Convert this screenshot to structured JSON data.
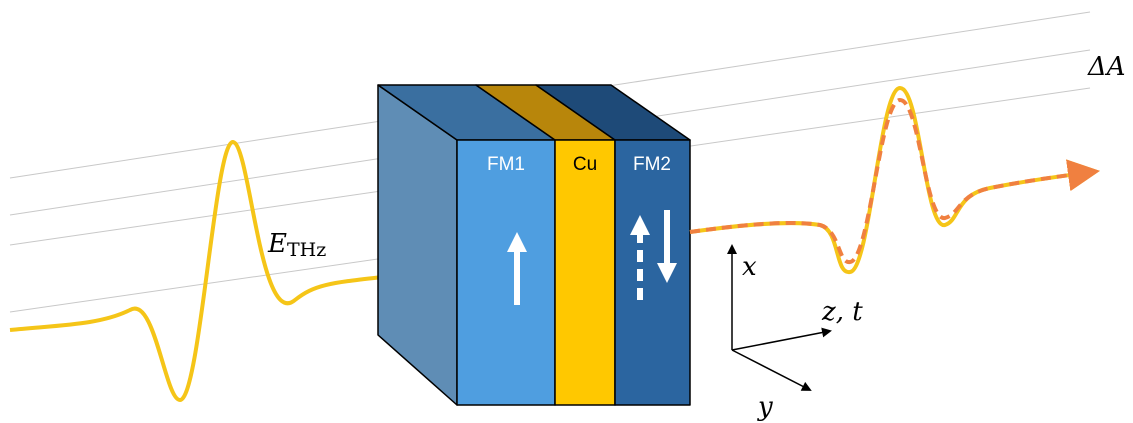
{
  "blocks": [
    {
      "label": "FM1"
    },
    {
      "label": "Cu"
    },
    {
      "label": "FM2"
    }
  ],
  "pulse_label": {
    "symbol": "E",
    "subscript": "THz"
  },
  "signal_label": "ΔA",
  "axes": {
    "x": "x",
    "z": "z, t",
    "y": "y"
  }
}
